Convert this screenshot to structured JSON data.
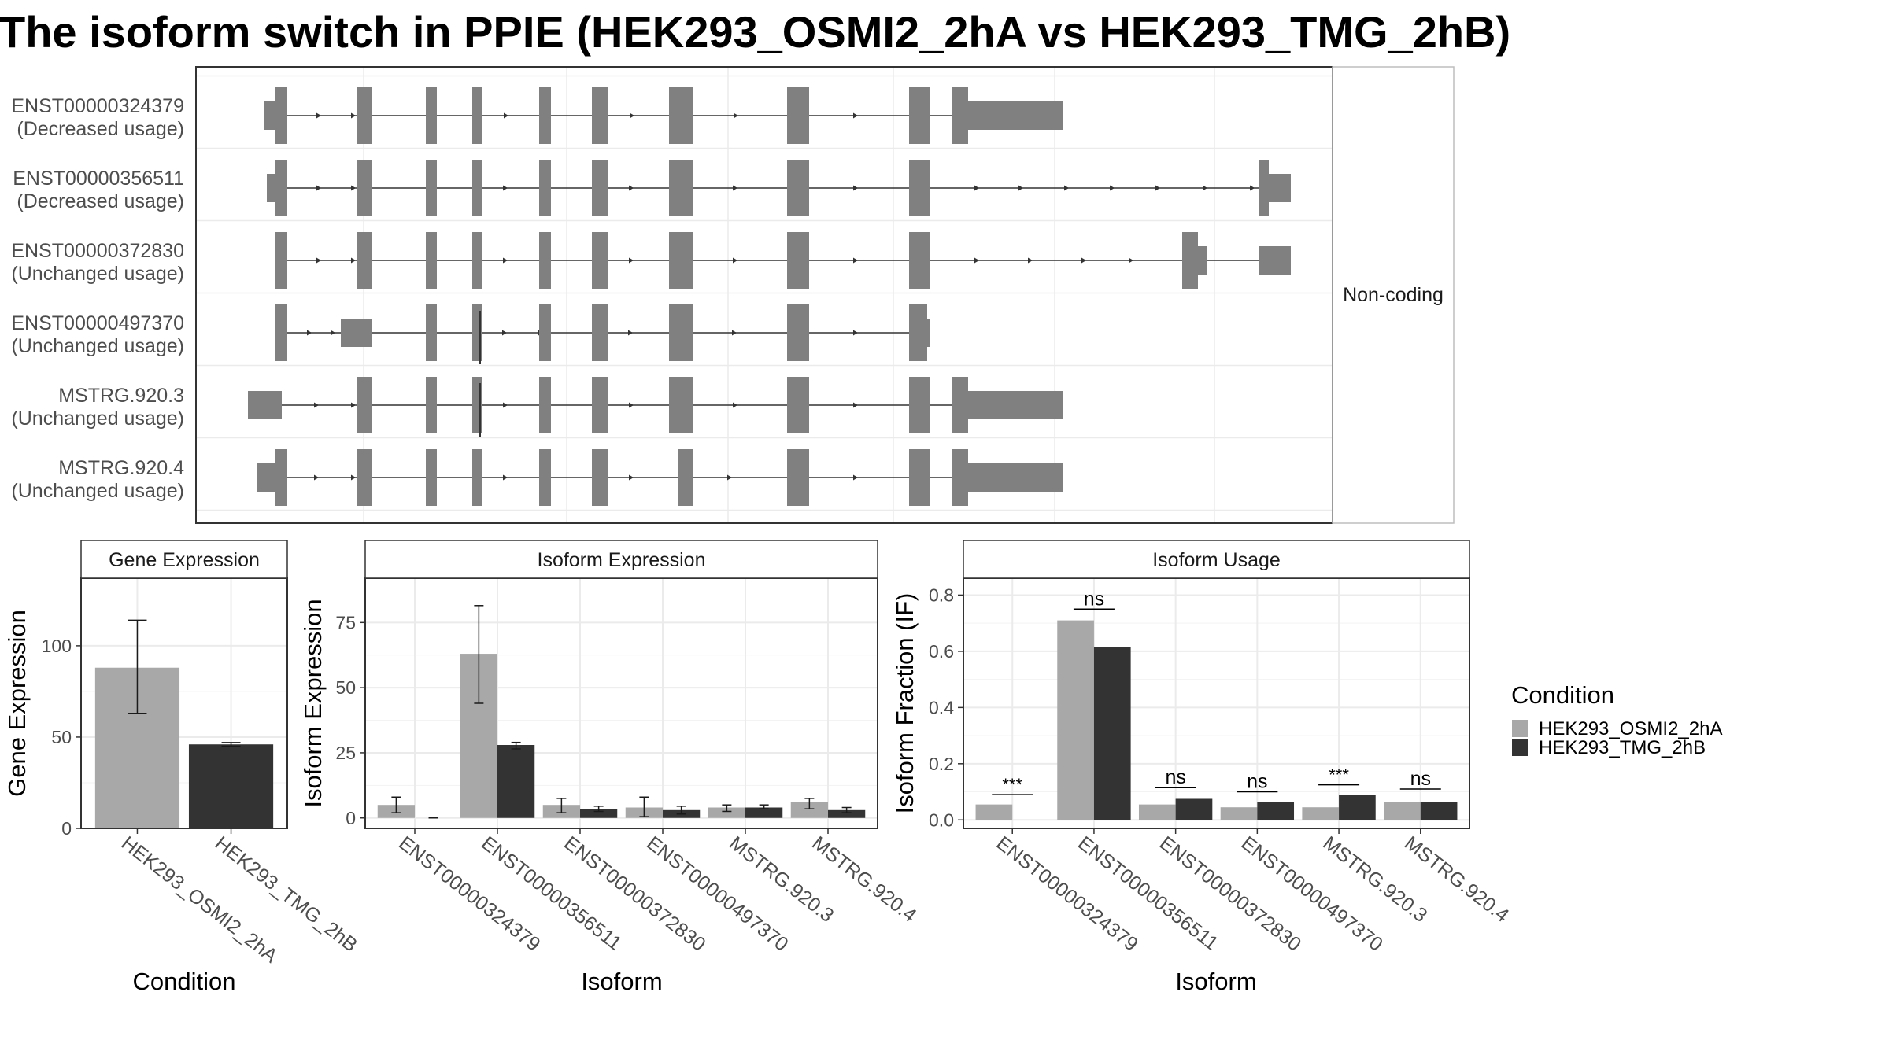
{
  "title": "The isoform switch in PPIE (HEK293_OSMI2_2hA vs HEK293_TMG_2hB)",
  "colors": {
    "cond1": "#a8a8a8",
    "cond2": "#333333",
    "exon": "#808080",
    "grid": "#ebebeb",
    "frame": "#333333"
  },
  "structure": {
    "strip": "Non-coding",
    "isoforms": [
      {
        "id": "ENST00000324379",
        "usage": "(Decreased usage)"
      },
      {
        "id": "ENST00000356511",
        "usage": "(Decreased usage)"
      },
      {
        "id": "ENST00000372830",
        "usage": "(Unchanged usage)"
      },
      {
        "id": "ENST00000497370",
        "usage": "(Unchanged usage)"
      },
      {
        "id": "MSTRG.920.3",
        "usage": "(Unchanged usage)"
      },
      {
        "id": "MSTRG.920.4",
        "usage": "(Unchanged usage)"
      }
    ]
  },
  "legend": {
    "title": "Condition",
    "items": [
      {
        "label": "HEK293_OSMI2_2hA",
        "color": "#a8a8a8"
      },
      {
        "label": "HEK293_TMG_2hB",
        "color": "#333333"
      }
    ]
  },
  "chart_data": [
    {
      "type": "bar",
      "strip": "Gene Expression",
      "xlabel": "Condition",
      "ylabel": "Gene Expression",
      "categories": [
        "HEK293_OSMI2_2hA",
        "HEK293_TMG_2hB"
      ],
      "values": [
        88,
        46
      ],
      "errors": [
        [
          63,
          114
        ],
        [
          45,
          47
        ]
      ],
      "colors": [
        "#a8a8a8",
        "#333333"
      ],
      "ylim": [
        0,
        137
      ],
      "yticks": [
        0,
        50,
        100
      ],
      "grid": true
    },
    {
      "type": "bar",
      "strip": "Isoform Expression",
      "xlabel": "Isoform",
      "ylabel": "Isoform Expression",
      "categories": [
        "ENST00000324379",
        "ENST00000356511",
        "ENST00000372830",
        "ENST00000497370",
        "MSTRG.920.3",
        "MSTRG.920.4"
      ],
      "series": [
        {
          "name": "HEK293_OSMI2_2hA",
          "values": [
            5,
            63,
            5,
            4,
            4,
            6
          ],
          "errors": [
            [
              2,
              8
            ],
            [
              44,
              81.5
            ],
            [
              2,
              7.5
            ],
            [
              0.5,
              8
            ],
            [
              2.5,
              5
            ],
            [
              3.5,
              7.5
            ]
          ]
        },
        {
          "name": "HEK293_TMG_2hB",
          "values": [
            0,
            28,
            3.5,
            3,
            4,
            3
          ],
          "errors": [
            [
              0,
              0
            ],
            [
              26.5,
              29
            ],
            [
              2.5,
              4.5
            ],
            [
              1.5,
              4.5
            ],
            [
              3.5,
              5
            ],
            [
              2,
              4
            ]
          ]
        }
      ],
      "ylim": [
        -4,
        92
      ],
      "yticks": [
        0,
        25,
        50,
        75
      ],
      "grid": true
    },
    {
      "type": "bar",
      "strip": "Isoform Usage",
      "xlabel": "Isoform",
      "ylabel": "Isoform Fraction (IF)",
      "categories": [
        "ENST00000324379",
        "ENST00000356511",
        "ENST00000372830",
        "ENST00000497370",
        "MSTRG.920.3",
        "MSTRG.920.4"
      ],
      "series": [
        {
          "name": "HEK293_OSMI2_2hA",
          "values": [
            0.055,
            0.71,
            0.055,
            0.045,
            0.045,
            0.065
          ]
        },
        {
          "name": "HEK293_TMG_2hB",
          "values": [
            0,
            0.615,
            0.075,
            0.065,
            0.09,
            0.065
          ]
        }
      ],
      "significance": [
        "***",
        "ns",
        "ns",
        "ns",
        "***",
        "ns"
      ],
      "sig_line_y": [
        0.09,
        0.75,
        0.115,
        0.1,
        0.125,
        0.11
      ],
      "ylim": [
        -0.03,
        0.86
      ],
      "yticks": [
        0.0,
        0.2,
        0.4,
        0.6,
        0.8
      ],
      "ytick_labels": [
        "0.0",
        "0.2",
        "0.4",
        "0.6",
        "0.8"
      ],
      "grid": true
    }
  ]
}
